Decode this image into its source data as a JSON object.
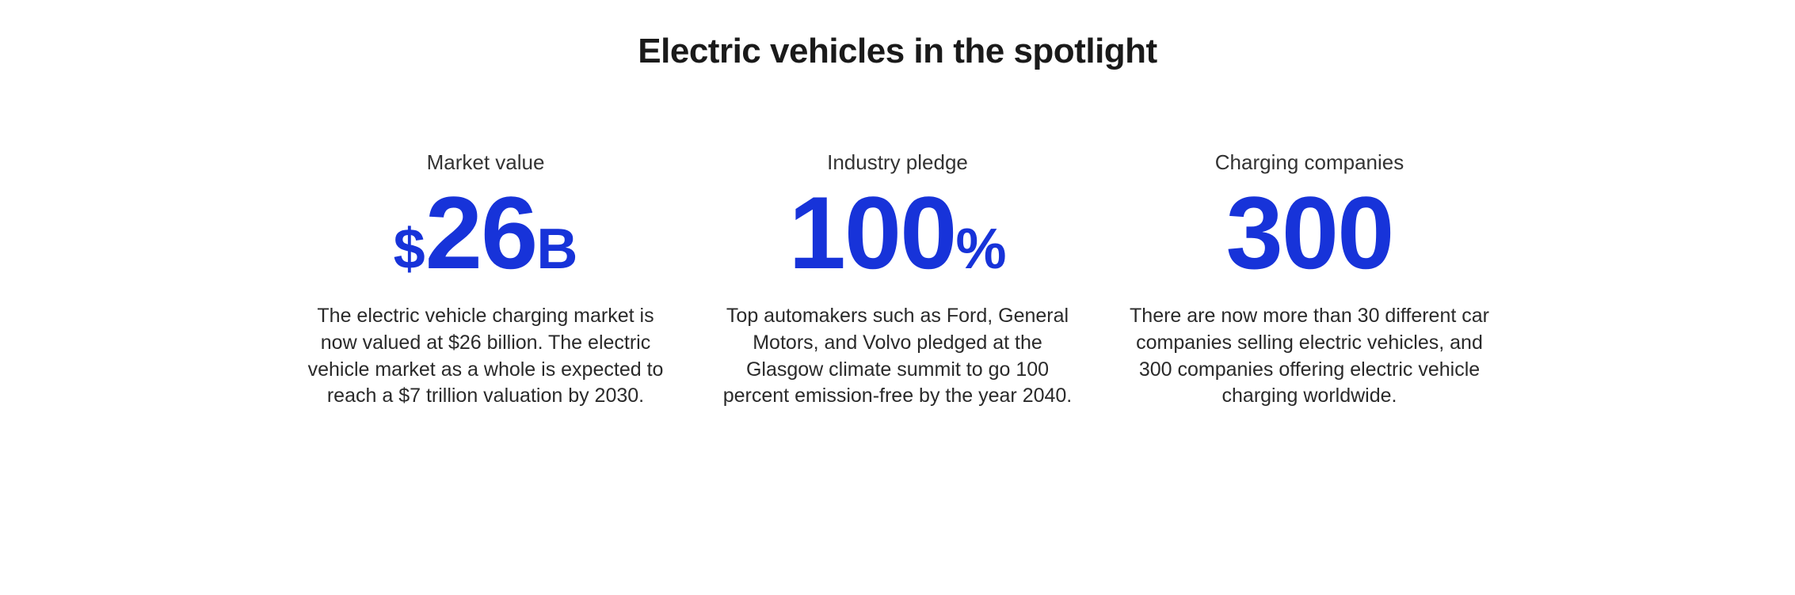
{
  "title": "Electric vehicles in the spotlight",
  "accent_color": "#1733d9",
  "text_color": "#1a1a1a",
  "background_color": "#ffffff",
  "stats": [
    {
      "label": "Market value",
      "prefix": "$",
      "value": "26",
      "suffix": "B",
      "description": "The electric vehicle charging market is now valued at $26 billion. The electric vehicle market as a whole is expected to reach a $7 trillion valuation by 2030."
    },
    {
      "label": "Industry pledge",
      "prefix": "",
      "value": "100",
      "suffix": "%",
      "description": "Top automakers such as Ford, General Motors, and Volvo pledged at the Glasgow climate summit to go 100 percent emission-free by the year 2040."
    },
    {
      "label": "Charging companies",
      "prefix": "",
      "value": "300",
      "suffix": "",
      "description": "There are now more than 30 different car companies selling electric vehicles, and 300 companies offering electric vehicle charging worldwide."
    }
  ]
}
